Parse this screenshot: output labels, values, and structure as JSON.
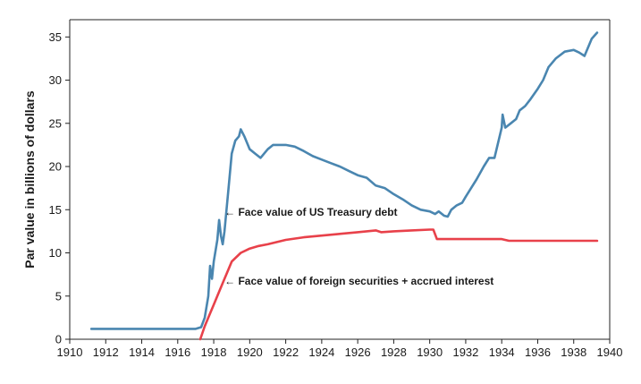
{
  "chart_data": {
    "type": "line",
    "title": "",
    "xlabel": "",
    "ylabel": "Par value in billions of dollars",
    "xlim": [
      1910,
      1940
    ],
    "ylim": [
      0,
      37
    ],
    "x_ticks": [
      1910,
      1912,
      1914,
      1916,
      1918,
      1920,
      1922,
      1924,
      1926,
      1928,
      1930,
      1932,
      1934,
      1936,
      1938,
      1940
    ],
    "y_ticks": [
      0,
      5,
      10,
      15,
      20,
      25,
      30,
      35
    ],
    "grid": false,
    "legend": "none",
    "series": [
      {
        "name": "Face value of US Treasury debt",
        "color": "#4a86b0",
        "x": [
          1911.2,
          1912,
          1913,
          1914,
          1915,
          1916,
          1917.0,
          1917.3,
          1917.5,
          1917.7,
          1917.8,
          1917.9,
          1918.0,
          1918.2,
          1918.3,
          1918.4,
          1918.5,
          1918.6,
          1918.8,
          1919.0,
          1919.2,
          1919.4,
          1919.5,
          1919.7,
          1920.0,
          1920.3,
          1920.6,
          1921.0,
          1921.3,
          1921.6,
          1922.0,
          1922.5,
          1923.0,
          1923.5,
          1924.0,
          1924.5,
          1925.0,
          1925.5,
          1926.0,
          1926.5,
          1927.0,
          1927.5,
          1928.0,
          1928.5,
          1929.0,
          1929.5,
          1930.0,
          1930.3,
          1930.5,
          1930.8,
          1931.0,
          1931.2,
          1931.5,
          1931.8,
          1932.0,
          1932.3,
          1932.6,
          1933.0,
          1933.3,
          1933.6,
          1934.0,
          1934.05,
          1934.2,
          1934.5,
          1934.8,
          1935.0,
          1935.3,
          1935.6,
          1936.0,
          1936.3,
          1936.6,
          1937.0,
          1937.5,
          1938.0,
          1938.3,
          1938.6,
          1939.0,
          1939.3
        ],
        "values": [
          1.2,
          1.2,
          1.2,
          1.2,
          1.2,
          1.2,
          1.2,
          1.4,
          2.5,
          5.0,
          8.5,
          7.0,
          9.0,
          11.5,
          13.8,
          12.0,
          11.0,
          12.5,
          17.0,
          21.5,
          23.0,
          23.5,
          24.3,
          23.5,
          22.0,
          21.5,
          21.0,
          22.0,
          22.5,
          22.5,
          22.5,
          22.3,
          21.8,
          21.2,
          20.8,
          20.4,
          20.0,
          19.5,
          19.0,
          18.7,
          17.8,
          17.5,
          16.8,
          16.2,
          15.5,
          15.0,
          14.8,
          14.5,
          14.8,
          14.3,
          14.2,
          15.0,
          15.5,
          15.8,
          16.5,
          17.5,
          18.5,
          20.0,
          21.0,
          21.0,
          24.5,
          26.0,
          24.5,
          25.0,
          25.5,
          26.5,
          27.0,
          27.8,
          29.0,
          30.0,
          31.5,
          32.5,
          33.3,
          33.5,
          33.2,
          32.8,
          34.8,
          35.5
        ]
      },
      {
        "name": "Face value of foreign securities + accrued interest",
        "color": "#e8414a",
        "x": [
          1917.25,
          1917.5,
          1917.8,
          1918.0,
          1918.3,
          1918.6,
          1919.0,
          1919.5,
          1920.0,
          1920.5,
          1921.0,
          1922.0,
          1923.0,
          1924.0,
          1925.0,
          1926.0,
          1927.0,
          1927.3,
          1928.0,
          1929.0,
          1930.0,
          1930.2,
          1930.4,
          1931.0,
          1932.0,
          1933.0,
          1934.0,
          1934.4,
          1935.0,
          1936.0,
          1937.0,
          1938.0,
          1939.3
        ],
        "values": [
          0.0,
          1.5,
          3.0,
          4.0,
          5.5,
          7.0,
          9.0,
          10.0,
          10.5,
          10.8,
          11.0,
          11.5,
          11.8,
          12.0,
          12.2,
          12.4,
          12.6,
          12.4,
          12.5,
          12.6,
          12.7,
          12.7,
          11.6,
          11.6,
          11.6,
          11.6,
          11.6,
          11.4,
          11.4,
          11.4,
          11.4,
          11.4,
          11.4
        ]
      }
    ],
    "annotations": [
      {
        "text": "← Face value of US Treasury debt",
        "x": 1918.6,
        "y": 14.3
      },
      {
        "text": "← Face value of foreign securities + accrued interest",
        "x": 1918.6,
        "y": 6.3
      }
    ]
  }
}
